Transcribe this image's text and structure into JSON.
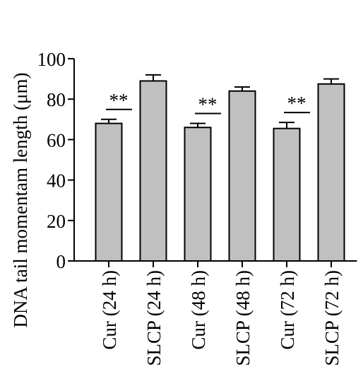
{
  "chart_data": {
    "type": "bar",
    "title": "",
    "xlabel": "",
    "ylabel": "DNA tail momentam length (μm)",
    "ylim": [
      0,
      100
    ],
    "yticks": [
      0,
      20,
      40,
      60,
      80,
      100
    ],
    "grid": false,
    "categories": [
      "Cur (24 h)",
      "SLCP (24 h)",
      "Cur (48 h)",
      "SLCP (48 h)",
      "Cur (72 h)",
      "SLCP (72 h)"
    ],
    "values": [
      68,
      89,
      66,
      84,
      65.5,
      87.5
    ],
    "errors": [
      2,
      3,
      2,
      2,
      3,
      2.5
    ],
    "bar_color": "#c0c0c0",
    "annotations": [
      {
        "text": "**",
        "between": [
          0,
          1
        ]
      },
      {
        "text": "**",
        "between": [
          2,
          3
        ]
      },
      {
        "text": "**",
        "between": [
          4,
          5
        ]
      }
    ]
  }
}
